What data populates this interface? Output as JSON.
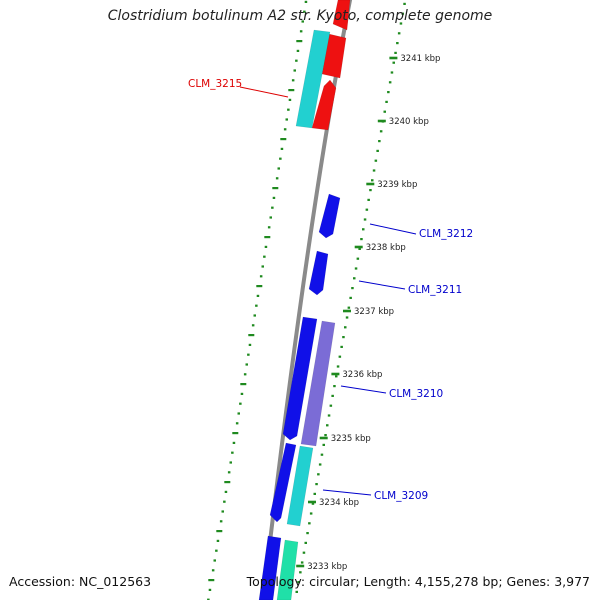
{
  "title": "Clostridium botulinum A2 str. Kyoto, complete genome",
  "footer": {
    "accession": "Accession: NC_012563",
    "summary": "Topology: circular; Length: 4,155,278 bp; Genes: 3,977"
  },
  "colors": {
    "backbone": "#8a8a8a",
    "tick": "#1f8a1f",
    "cds_blue": "#1010e8",
    "cds_red": "#ee1111",
    "cds_cyan": "#22d0d0",
    "cds_purple": "#7b6cd6",
    "cds_teal": "#20e0a8",
    "label_red": "#dd0000",
    "label_blue": "#0000cc"
  },
  "map": {
    "scale_labels": [
      {
        "kbp": 3241,
        "text": "3241 kbp"
      },
      {
        "kbp": 3240,
        "text": "3240 kbp"
      },
      {
        "kbp": 3239,
        "text": "3239 kbp"
      },
      {
        "kbp": 3238,
        "text": "3238 kbp"
      },
      {
        "kbp": 3237,
        "text": "3237 kbp"
      },
      {
        "kbp": 3236,
        "text": "3236 kbp"
      },
      {
        "kbp": 3235,
        "text": "3235 kbp"
      },
      {
        "kbp": 3234,
        "text": "3234 kbp"
      },
      {
        "kbp": 3233,
        "text": "3233 kbp"
      }
    ],
    "labeled_genes": [
      {
        "name": "CLM_3215",
        "color": "label_red"
      },
      {
        "name": "CLM_3212",
        "color": "label_blue"
      },
      {
        "name": "CLM_3211",
        "color": "label_blue"
      },
      {
        "name": "CLM_3210",
        "color": "label_blue"
      },
      {
        "name": "CLM_3209",
        "color": "label_blue"
      }
    ]
  }
}
